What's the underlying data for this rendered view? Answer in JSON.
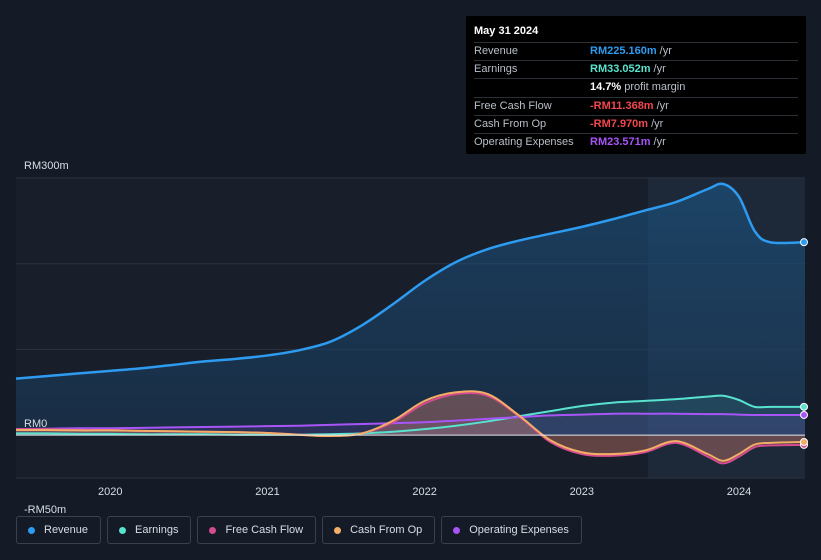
{
  "chart_data": {
    "type": "area",
    "x": [
      2019.4,
      2019.6,
      2019.8,
      2020.0,
      2020.2,
      2020.4,
      2020.6,
      2020.8,
      2021.0,
      2021.2,
      2021.4,
      2021.6,
      2021.8,
      2022.0,
      2022.2,
      2022.4,
      2022.6,
      2022.8,
      2023.0,
      2023.2,
      2023.4,
      2023.6,
      2023.8,
      2023.9,
      2024.0,
      2024.1,
      2024.2,
      2024.42
    ],
    "series": [
      {
        "name": "Revenue",
        "color": "#2d9bf0",
        "values": [
          66,
          69,
          72,
          75,
          78,
          82,
          86,
          89,
          93,
          99,
          109,
          128,
          153,
          180,
          202,
          217,
          227,
          235,
          243,
          252,
          262,
          272,
          287,
          293,
          278,
          238,
          225,
          225.16
        ]
      },
      {
        "name": "Earnings",
        "color": "#58e3cf",
        "values": [
          2,
          2,
          1.5,
          1.5,
          1,
          1,
          1,
          0.5,
          0.5,
          0.5,
          1,
          2,
          4,
          7,
          11,
          16,
          22,
          28,
          34,
          38,
          40,
          42,
          45,
          46,
          41,
          33,
          33,
          33.052
        ]
      },
      {
        "name": "Free Cash Flow",
        "color": "#d54b8f",
        "values": [
          7,
          7,
          6,
          6,
          5,
          4.5,
          4,
          3.5,
          2.5,
          0.5,
          -1,
          2,
          15,
          37,
          48,
          46,
          22,
          -8,
          -22,
          -24,
          -20,
          -9,
          -25,
          -33,
          -25,
          -14,
          -12,
          -11.368
        ]
      },
      {
        "name": "Cash From Op",
        "color": "#f2ae66",
        "values": [
          6,
          6,
          5.5,
          5.5,
          5,
          4.5,
          4,
          3.5,
          2.5,
          0.5,
          -1,
          2,
          17,
          40,
          50,
          48,
          23,
          -6,
          -20,
          -22,
          -18,
          -7,
          -22,
          -30,
          -22,
          -11,
          -9,
          -7.97
        ]
      },
      {
        "name": "Operating Expenses",
        "color": "#a855f7",
        "values": [
          7,
          7.5,
          8,
          8,
          8.5,
          9,
          9.5,
          10,
          10.5,
          11,
          12,
          13,
          14,
          15,
          17,
          19,
          21,
          23,
          24,
          25,
          25,
          25,
          24.5,
          24.5,
          24,
          23.5,
          23.5,
          23.571
        ]
      }
    ],
    "xlabel": "",
    "ylabel": "",
    "xlim": [
      2019.4,
      2024.42
    ],
    "ylim": [
      -50,
      300
    ],
    "y_tick_labels": [
      {
        "value": 300,
        "label": "RM300m"
      },
      {
        "value": 0,
        "label": "RM0"
      },
      {
        "value": -50,
        "label": "-RM50m"
      }
    ],
    "x_tick_labels": [
      {
        "value": 2020,
        "label": "2020"
      },
      {
        "value": 2021,
        "label": "2021"
      },
      {
        "value": 2022,
        "label": "2022"
      },
      {
        "value": 2023,
        "label": "2023"
      },
      {
        "value": 2024,
        "label": "2024"
      }
    ],
    "highlight_start": 2023.42
  },
  "tooltip": {
    "date": "May 31 2024",
    "rows": [
      {
        "label": "Revenue",
        "value": "RM225.160m",
        "unit": "/yr",
        "color": "#2d9bf0"
      },
      {
        "label": "Earnings",
        "value": "RM33.052m",
        "unit": "/yr",
        "color": "#58e3cf"
      },
      {
        "label": "",
        "value": "14.7%",
        "unit": "profit margin",
        "color": "#ffffff"
      },
      {
        "label": "Free Cash Flow",
        "value": "-RM11.368m",
        "unit": "/yr",
        "color": "#f0484e"
      },
      {
        "label": "Cash From Op",
        "value": "-RM7.970m",
        "unit": "/yr",
        "color": "#f0484e"
      },
      {
        "label": "Operating Expenses",
        "value": "RM23.571m",
        "unit": "/yr",
        "color": "#a855f7"
      }
    ]
  },
  "legend": [
    {
      "label": "Revenue",
      "color": "#2d9bf0"
    },
    {
      "label": "Earnings",
      "color": "#58e3cf"
    },
    {
      "label": "Free Cash Flow",
      "color": "#d54b8f"
    },
    {
      "label": "Cash From Op",
      "color": "#f2ae66"
    },
    {
      "label": "Operating Expenses",
      "color": "#a855f7"
    }
  ]
}
